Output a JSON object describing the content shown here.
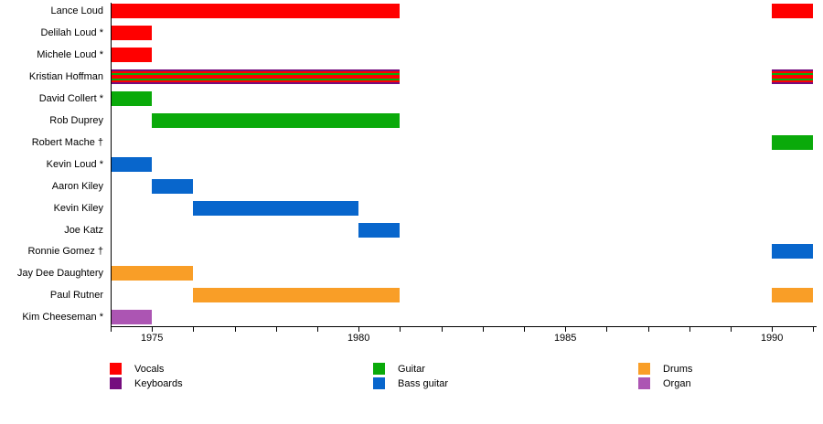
{
  "chart_data": {
    "type": "bar",
    "subtype": "band-member-timeline",
    "title": "",
    "x_axis": {
      "start_year": 1974,
      "end_year": 1991,
      "tick_interval": 1,
      "labeled_ticks": [
        "1975",
        "1980",
        "1985",
        "1990"
      ]
    },
    "colors": {
      "vocals": "#FF0000",
      "keyboards": "#750D7E",
      "guitar": "#0AAA0A",
      "bass_guitar": "#0866CC",
      "drums": "#F99E27",
      "organ": "#AC55B3"
    },
    "legend_columns": [
      [
        {
          "label": "Vocals",
          "color_key": "vocals"
        },
        {
          "label": "Keyboards",
          "color_key": "keyboards"
        }
      ],
      [
        {
          "label": "Guitar",
          "color_key": "guitar"
        },
        {
          "label": "Bass guitar",
          "color_key": "bass_guitar"
        }
      ],
      [
        {
          "label": "Drums",
          "color_key": "drums"
        },
        {
          "label": "Organ",
          "color_key": "organ"
        }
      ]
    ],
    "members": [
      {
        "name": "Lance Loud",
        "segments": [
          {
            "start": 1974,
            "end": 1981,
            "layers": [
              "vocals"
            ]
          },
          {
            "start": 1990,
            "end": 1991,
            "layers": [
              "vocals"
            ]
          }
        ]
      },
      {
        "name": "Delilah Loud *",
        "segments": [
          {
            "start": 1974,
            "end": 1975,
            "layers": [
              "vocals"
            ]
          }
        ]
      },
      {
        "name": "Michele Loud *",
        "segments": [
          {
            "start": 1974,
            "end": 1975,
            "layers": [
              "vocals"
            ]
          }
        ]
      },
      {
        "name": "Kristian Hoffman",
        "segments": [
          {
            "start": 1974,
            "end": 1981,
            "layers": [
              "keyboards",
              "vocals",
              "guitar",
              "vocals"
            ]
          },
          {
            "start": 1990,
            "end": 1991,
            "layers": [
              "keyboards",
              "vocals",
              "guitar",
              "vocals"
            ]
          }
        ]
      },
      {
        "name": "David Collert *",
        "segments": [
          {
            "start": 1974,
            "end": 1975,
            "layers": [
              "guitar"
            ]
          }
        ]
      },
      {
        "name": "Rob Duprey",
        "segments": [
          {
            "start": 1975,
            "end": 1981,
            "layers": [
              "guitar"
            ]
          }
        ]
      },
      {
        "name": "Robert Mache †",
        "segments": [
          {
            "start": 1990,
            "end": 1991,
            "layers": [
              "guitar"
            ]
          }
        ]
      },
      {
        "name": "Kevin Loud *",
        "segments": [
          {
            "start": 1974,
            "end": 1975,
            "layers": [
              "bass_guitar"
            ]
          }
        ]
      },
      {
        "name": "Aaron Kiley",
        "segments": [
          {
            "start": 1975,
            "end": 1976,
            "layers": [
              "bass_guitar"
            ]
          }
        ]
      },
      {
        "name": "Kevin Kiley",
        "segments": [
          {
            "start": 1976,
            "end": 1980,
            "layers": [
              "bass_guitar"
            ]
          }
        ]
      },
      {
        "name": "Joe Katz",
        "segments": [
          {
            "start": 1980,
            "end": 1981,
            "layers": [
              "bass_guitar"
            ]
          }
        ]
      },
      {
        "name": "Ronnie Gomez †",
        "segments": [
          {
            "start": 1990,
            "end": 1991,
            "layers": [
              "bass_guitar"
            ]
          }
        ]
      },
      {
        "name": "Jay Dee Daughtery",
        "segments": [
          {
            "start": 1974,
            "end": 1976,
            "layers": [
              "drums"
            ]
          }
        ]
      },
      {
        "name": "Paul Rutner",
        "segments": [
          {
            "start": 1976,
            "end": 1981,
            "layers": [
              "drums"
            ]
          },
          {
            "start": 1990,
            "end": 1991,
            "layers": [
              "drums"
            ]
          }
        ]
      },
      {
        "name": "Kim Cheeseman *",
        "segments": [
          {
            "start": 1974,
            "end": 1975,
            "layers": [
              "organ"
            ]
          }
        ]
      }
    ]
  }
}
